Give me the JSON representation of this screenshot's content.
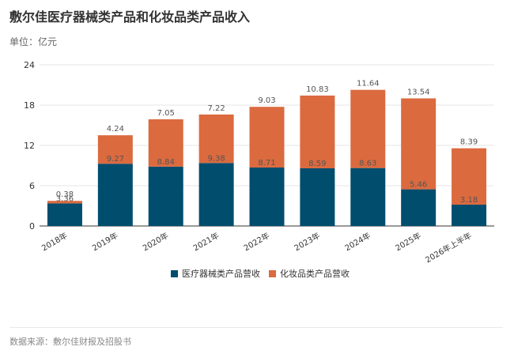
{
  "title": "敷尔佳医疗器械类产品和化妆品类产品收入",
  "unit_label": "单位：亿元",
  "source": "数据来源：敷尔佳财报及招股书",
  "colors": {
    "medical": "#014d6e",
    "cosmetics": "#db6a3f",
    "grid": "#e6e6e6",
    "axis": "#333333"
  },
  "chart_data": {
    "type": "bar",
    "stacked": true,
    "categories": [
      "2018年",
      "2019年",
      "2020年",
      "2021年",
      "2022年",
      "2023年",
      "2024年",
      "2025年",
      "2026年上半年"
    ],
    "series": [
      {
        "name": "医疗器械类产品营收",
        "values": [
          3.36,
          9.27,
          8.84,
          9.38,
          8.71,
          8.59,
          8.63,
          5.46,
          3.18
        ]
      },
      {
        "name": "化妆品类产品营收",
        "values": [
          0.38,
          4.24,
          7.05,
          7.22,
          9.03,
          10.83,
          11.64,
          13.54,
          8.39
        ]
      }
    ],
    "ylim": [
      0,
      24
    ],
    "yticks": [
      0,
      6,
      12,
      18,
      24
    ],
    "grid": true,
    "legend_position": "bottom"
  }
}
